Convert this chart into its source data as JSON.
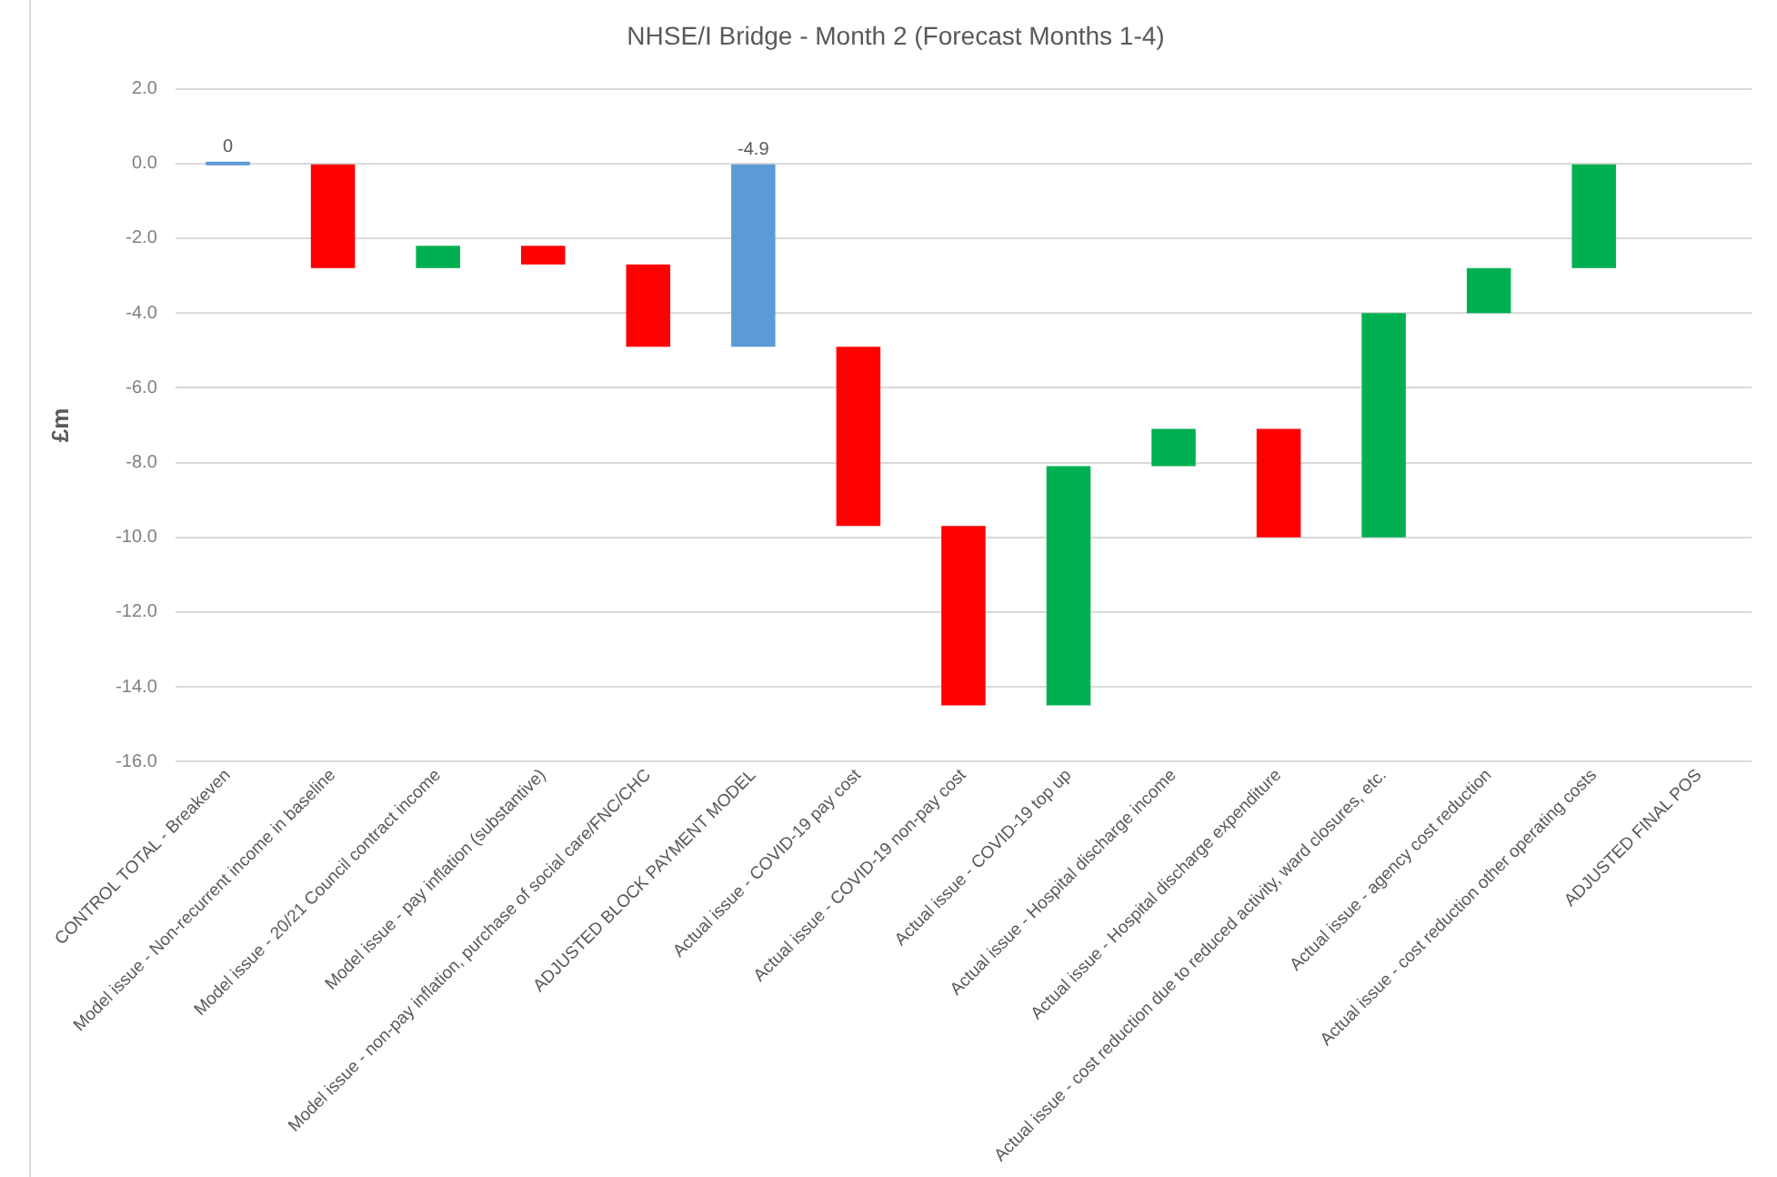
{
  "chart_data": {
    "type": "bar",
    "title": "NHSE/I Bridge - Month 2 (Forecast Months 1-4)",
    "ylabel": "£m",
    "categories": [
      "CONTROL TOTAL - Breakeven",
      "Model issue - Non-recurrent income in baseline",
      "Model issue - 20/21 Council contract income",
      "Model issue - pay inflation (substantive)",
      "Model issue - non-pay inflation, purchase of social care/FNC/CHC",
      "ADJUSTED BLOCK PAYMENT MODEL",
      "Actual issue - COVID-19 pay cost",
      "Actual issue - COVID-19 non-pay cost",
      "Actual issue - COVID-19 top up",
      "Actual issue - Hospital discharge income",
      "Actual issue - Hospital discharge expenditure",
      "Actual issue - cost reduction due to reduced activity, ward closures, etc.",
      "Actual issue - agency cost reduction",
      "Actual issue - cost reduction other operating costs",
      "ADJUSTED FINAL POS"
    ],
    "base": [
      0,
      0,
      -2.8,
      -2.2,
      -2.7,
      0,
      -4.9,
      -9.7,
      -14.5,
      -8.1,
      -7.1,
      -10.0,
      -4.0,
      -2.8,
      null
    ],
    "values": [
      0,
      -2.8,
      0.6,
      -0.5,
      -2.2,
      -4.9,
      -4.8,
      -4.8,
      6.4,
      1.0,
      -2.9,
      6.0,
      1.2,
      2.8,
      null
    ],
    "colors": [
      "#5b9bd5",
      "#ff0000",
      "#00b050",
      "#ff0000",
      "#ff0000",
      "#5b9bd5",
      "#ff0000",
      "#ff0000",
      "#00b050",
      "#00b050",
      "#ff0000",
      "#00b050",
      "#00b050",
      "#00b050",
      "#5b9bd5"
    ],
    "value_labels": [
      "0",
      null,
      null,
      null,
      null,
      "-4.9",
      null,
      null,
      null,
      null,
      null,
      null,
      null,
      null,
      null
    ],
    "ylim": [
      -16,
      2
    ],
    "yticks": [
      {
        "value": 2,
        "label": "2.0"
      },
      {
        "value": 0,
        "label": "0.0"
      },
      {
        "value": -2,
        "label": "-2.0"
      },
      {
        "value": -4,
        "label": "-4.0"
      },
      {
        "value": -6,
        "label": "-6.0"
      },
      {
        "value": -8,
        "label": "-8.0"
      },
      {
        "value": -10,
        "label": "-10.0"
      },
      {
        "value": -12,
        "label": "-12.0"
      },
      {
        "value": -14,
        "label": "-14.0"
      },
      {
        "value": -16,
        "label": "-16.0"
      }
    ],
    "grid": "y"
  }
}
